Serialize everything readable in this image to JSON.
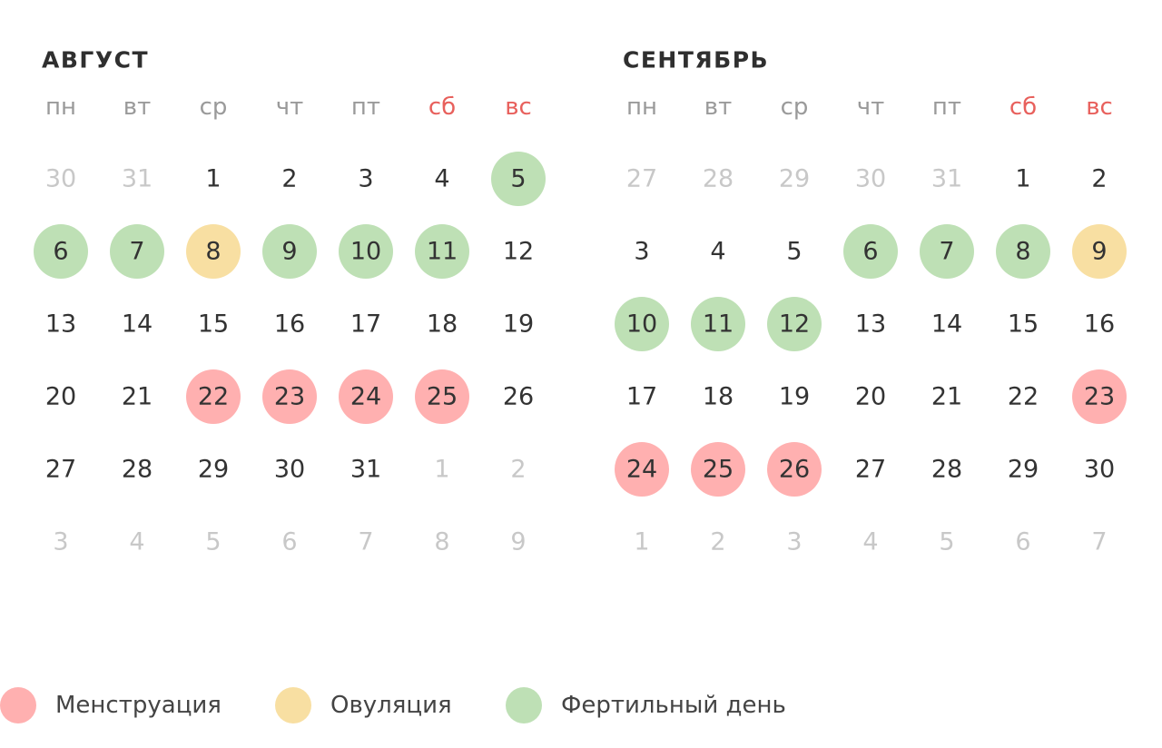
{
  "months": [
    {
      "title": "АВГУСТ",
      "weekdays": [
        {
          "label": "пн"
        },
        {
          "label": "вт"
        },
        {
          "label": "ср"
        },
        {
          "label": "чт"
        },
        {
          "label": "пт"
        },
        {
          "label": "сб",
          "weekend": true
        },
        {
          "label": "вс",
          "weekend": true
        }
      ],
      "weeks": [
        [
          {
            "day": 30,
            "kind": "other"
          },
          {
            "day": 31,
            "kind": "other"
          },
          {
            "day": 1,
            "kind": "plain"
          },
          {
            "day": 2,
            "kind": "plain"
          },
          {
            "day": 3,
            "kind": "plain"
          },
          {
            "day": 4,
            "kind": "plain"
          },
          {
            "day": 5,
            "kind": "fertile"
          }
        ],
        [
          {
            "day": 6,
            "kind": "fertile"
          },
          {
            "day": 7,
            "kind": "fertile"
          },
          {
            "day": 8,
            "kind": "ovulation"
          },
          {
            "day": 9,
            "kind": "fertile"
          },
          {
            "day": 10,
            "kind": "fertile"
          },
          {
            "day": 11,
            "kind": "fertile"
          },
          {
            "day": 12,
            "kind": "plain"
          }
        ],
        [
          {
            "day": 13,
            "kind": "plain"
          },
          {
            "day": 14,
            "kind": "plain"
          },
          {
            "day": 15,
            "kind": "plain"
          },
          {
            "day": 16,
            "kind": "plain"
          },
          {
            "day": 17,
            "kind": "plain"
          },
          {
            "day": 18,
            "kind": "plain"
          },
          {
            "day": 19,
            "kind": "plain"
          }
        ],
        [
          {
            "day": 20,
            "kind": "plain"
          },
          {
            "day": 21,
            "kind": "plain"
          },
          {
            "day": 22,
            "kind": "menstruation"
          },
          {
            "day": 23,
            "kind": "menstruation"
          },
          {
            "day": 24,
            "kind": "menstruation"
          },
          {
            "day": 25,
            "kind": "menstruation"
          },
          {
            "day": 26,
            "kind": "plain"
          }
        ],
        [
          {
            "day": 27,
            "kind": "plain"
          },
          {
            "day": 28,
            "kind": "plain"
          },
          {
            "day": 29,
            "kind": "plain"
          },
          {
            "day": 30,
            "kind": "plain"
          },
          {
            "day": 31,
            "kind": "plain"
          },
          {
            "day": 1,
            "kind": "other"
          },
          {
            "day": 2,
            "kind": "other"
          }
        ],
        [
          {
            "day": 3,
            "kind": "other"
          },
          {
            "day": 4,
            "kind": "other"
          },
          {
            "day": 5,
            "kind": "other"
          },
          {
            "day": 6,
            "kind": "other"
          },
          {
            "day": 7,
            "kind": "other"
          },
          {
            "day": 8,
            "kind": "other"
          },
          {
            "day": 9,
            "kind": "other"
          }
        ]
      ]
    },
    {
      "title": "СЕНТЯБРЬ",
      "weekdays": [
        {
          "label": "пн"
        },
        {
          "label": "вт"
        },
        {
          "label": "ср"
        },
        {
          "label": "чт"
        },
        {
          "label": "пт"
        },
        {
          "label": "сб",
          "weekend": true
        },
        {
          "label": "вс",
          "weekend": true
        }
      ],
      "weeks": [
        [
          {
            "day": 27,
            "kind": "other"
          },
          {
            "day": 28,
            "kind": "other"
          },
          {
            "day": 29,
            "kind": "other"
          },
          {
            "day": 30,
            "kind": "other"
          },
          {
            "day": 31,
            "kind": "other"
          },
          {
            "day": 1,
            "kind": "plain"
          },
          {
            "day": 2,
            "kind": "plain"
          }
        ],
        [
          {
            "day": 3,
            "kind": "plain"
          },
          {
            "day": 4,
            "kind": "plain"
          },
          {
            "day": 5,
            "kind": "plain"
          },
          {
            "day": 6,
            "kind": "fertile"
          },
          {
            "day": 7,
            "kind": "fertile"
          },
          {
            "day": 8,
            "kind": "fertile"
          },
          {
            "day": 9,
            "kind": "ovulation"
          }
        ],
        [
          {
            "day": 10,
            "kind": "fertile"
          },
          {
            "day": 11,
            "kind": "fertile"
          },
          {
            "day": 12,
            "kind": "fertile"
          },
          {
            "day": 13,
            "kind": "plain"
          },
          {
            "day": 14,
            "kind": "plain"
          },
          {
            "day": 15,
            "kind": "plain"
          },
          {
            "day": 16,
            "kind": "plain"
          }
        ],
        [
          {
            "day": 17,
            "kind": "plain"
          },
          {
            "day": 18,
            "kind": "plain"
          },
          {
            "day": 19,
            "kind": "plain"
          },
          {
            "day": 20,
            "kind": "plain"
          },
          {
            "day": 21,
            "kind": "plain"
          },
          {
            "day": 22,
            "kind": "plain"
          },
          {
            "day": 23,
            "kind": "menstruation"
          }
        ],
        [
          {
            "day": 24,
            "kind": "menstruation"
          },
          {
            "day": 25,
            "kind": "menstruation"
          },
          {
            "day": 26,
            "kind": "menstruation"
          },
          {
            "day": 27,
            "kind": "plain"
          },
          {
            "day": 28,
            "kind": "plain"
          },
          {
            "day": 29,
            "kind": "plain"
          },
          {
            "day": 30,
            "kind": "plain"
          }
        ],
        [
          {
            "day": 1,
            "kind": "other"
          },
          {
            "day": 2,
            "kind": "other"
          },
          {
            "day": 3,
            "kind": "other"
          },
          {
            "day": 4,
            "kind": "other"
          },
          {
            "day": 5,
            "kind": "other"
          },
          {
            "day": 6,
            "kind": "other"
          },
          {
            "day": 7,
            "kind": "other"
          }
        ]
      ]
    }
  ],
  "legend": [
    {
      "label": "Менструация",
      "kind": "menstruation",
      "color": "#ffb0b0"
    },
    {
      "label": "Овуляция",
      "kind": "ovulation",
      "color": "#f8dfa2"
    },
    {
      "label": "Фертильный день",
      "kind": "fertile",
      "color": "#bee0b5"
    }
  ]
}
